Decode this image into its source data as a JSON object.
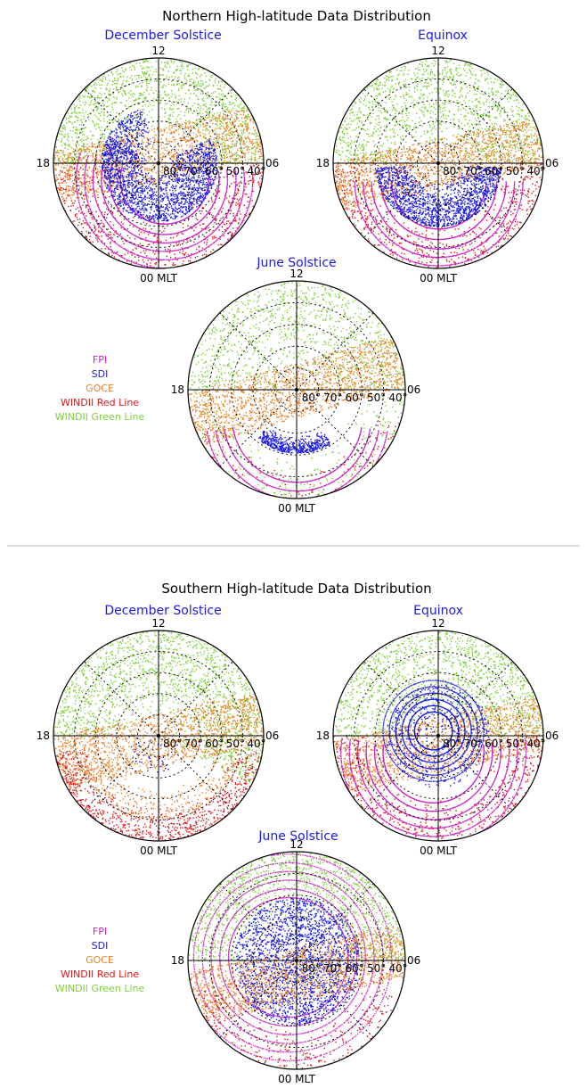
{
  "colors": {
    "panel_title": "#1a1ae6",
    "FPI": "#cc22cc",
    "SDI": "#1a1ae6",
    "GOCE": "#e8822a",
    "WINDII Red Line": "#dd1a1a",
    "WINDII Green Line": "#7fcf3a",
    "grid": "#000000",
    "divider": "#bbbbbb"
  },
  "chart_data": [
    {
      "type": "scatter",
      "title": "Northern High-latitude Data Distribution",
      "panels": [
        {
          "title": "December Solstice",
          "mlt_labels": {
            "top": "12",
            "left": "18",
            "right": "06",
            "bottom": "00 MLT"
          },
          "latitude_ticks": [
            "80°",
            "70°",
            "60°",
            "50°",
            "40°"
          ],
          "datasets": [
            {
              "name": "WINDII Green Line",
              "coverage": "upper hemisphere 40°–90°, dayside"
            },
            {
              "name": "GOCE",
              "coverage": "tilted band through pole, dusk to dawn"
            },
            {
              "name": "WINDII Red Line",
              "coverage": "nightside 40°–70°"
            },
            {
              "name": "FPI",
              "coverage": "concentric rings nightside 50°–75°"
            },
            {
              "name": "SDI",
              "coverage": "dense cluster around pole 60°–80°"
            }
          ]
        },
        {
          "title": "Equinox",
          "mlt_labels": {
            "top": "12",
            "left": "18",
            "right": "06",
            "bottom": "00 MLT"
          },
          "latitude_ticks": [
            "80°",
            "70°",
            "60°",
            "50°",
            "40°"
          ],
          "datasets": [
            {
              "name": "WINDII Green Line",
              "coverage": "dayside 40°–90°"
            },
            {
              "name": "GOCE",
              "coverage": "tilted band, dusk to dawn"
            },
            {
              "name": "WINDII Red Line",
              "coverage": "nightside 40°–60°"
            },
            {
              "name": "FPI",
              "coverage": "rings nightside 50°–70°"
            },
            {
              "name": "SDI",
              "coverage": "nightside cluster 60°–80°"
            }
          ]
        },
        {
          "title": "June Solstice",
          "mlt_labels": {
            "top": "12",
            "left": "18",
            "right": "06",
            "bottom": "00 MLT"
          },
          "latitude_ticks": [
            "80°",
            "70°",
            "60°",
            "50°",
            "40°"
          ],
          "datasets": [
            {
              "name": "WINDII Green Line",
              "coverage": "dayside, sparse nightside"
            },
            {
              "name": "GOCE",
              "coverage": "tilted band, dusk to dawn"
            },
            {
              "name": "FPI",
              "coverage": "rings nightside 45°–60°"
            },
            {
              "name": "SDI",
              "coverage": "small nightside arc ~65°"
            },
            {
              "name": "WINDII Red Line",
              "coverage": "sparse nightside"
            }
          ]
        }
      ],
      "legend": [
        "FPI",
        "SDI",
        "GOCE",
        "WINDII Red Line",
        "WINDII Green Line"
      ]
    },
    {
      "type": "scatter",
      "title": "Southern High-latitude Data Distribution",
      "panels": [
        {
          "title": "December Solstice",
          "mlt_labels": {
            "top": "12",
            "left": "18",
            "right": "06",
            "bottom": "00 MLT"
          },
          "latitude_ticks": [
            "80°",
            "70°",
            "60°",
            "50°",
            "40°"
          ],
          "datasets": [
            {
              "name": "WINDII Green Line",
              "coverage": "dayside and dawn 40°–90°"
            },
            {
              "name": "GOCE",
              "coverage": "tilted band, dusk to dawn"
            },
            {
              "name": "WINDII Red Line",
              "coverage": "nightside 40°–55°"
            },
            {
              "name": "SDI",
              "coverage": "sparse points near pole"
            }
          ]
        },
        {
          "title": "Equinox",
          "mlt_labels": {
            "top": "12",
            "left": "18",
            "right": "06",
            "bottom": "00 MLT"
          },
          "latitude_ticks": [
            "80°",
            "70°",
            "60°",
            "50°",
            "40°"
          ],
          "datasets": [
            {
              "name": "WINDII Green Line",
              "coverage": "dayside 40°–90°"
            },
            {
              "name": "GOCE",
              "coverage": "tilted band, dusk to dawn"
            },
            {
              "name": "FPI",
              "coverage": "rings around pole 45°–80°"
            },
            {
              "name": "SDI",
              "coverage": "rings around pole 65°–85°"
            },
            {
              "name": "WINDII Red Line",
              "coverage": "nightside 40°–55°"
            }
          ]
        },
        {
          "title": "June Solstice",
          "mlt_labels": {
            "top": "12",
            "left": "18",
            "right": "06",
            "bottom": "00 MLT"
          },
          "latitude_ticks": [
            "80°",
            "70°",
            "60°",
            "50°",
            "40°"
          ],
          "datasets": [
            {
              "name": "WINDII Green Line",
              "coverage": "dayside 40°–60°"
            },
            {
              "name": "FPI",
              "coverage": "rings around pole 45°–85°"
            },
            {
              "name": "SDI",
              "coverage": "dense cluster around pole 60°–90°"
            },
            {
              "name": "GOCE",
              "coverage": "tilted band, dusk to dawn"
            },
            {
              "name": "WINDII Red Line",
              "coverage": "nightside 40°–55°"
            }
          ]
        }
      ],
      "legend": [
        "FPI",
        "SDI",
        "GOCE",
        "WINDII Red Line",
        "WINDII Green Line"
      ]
    }
  ]
}
